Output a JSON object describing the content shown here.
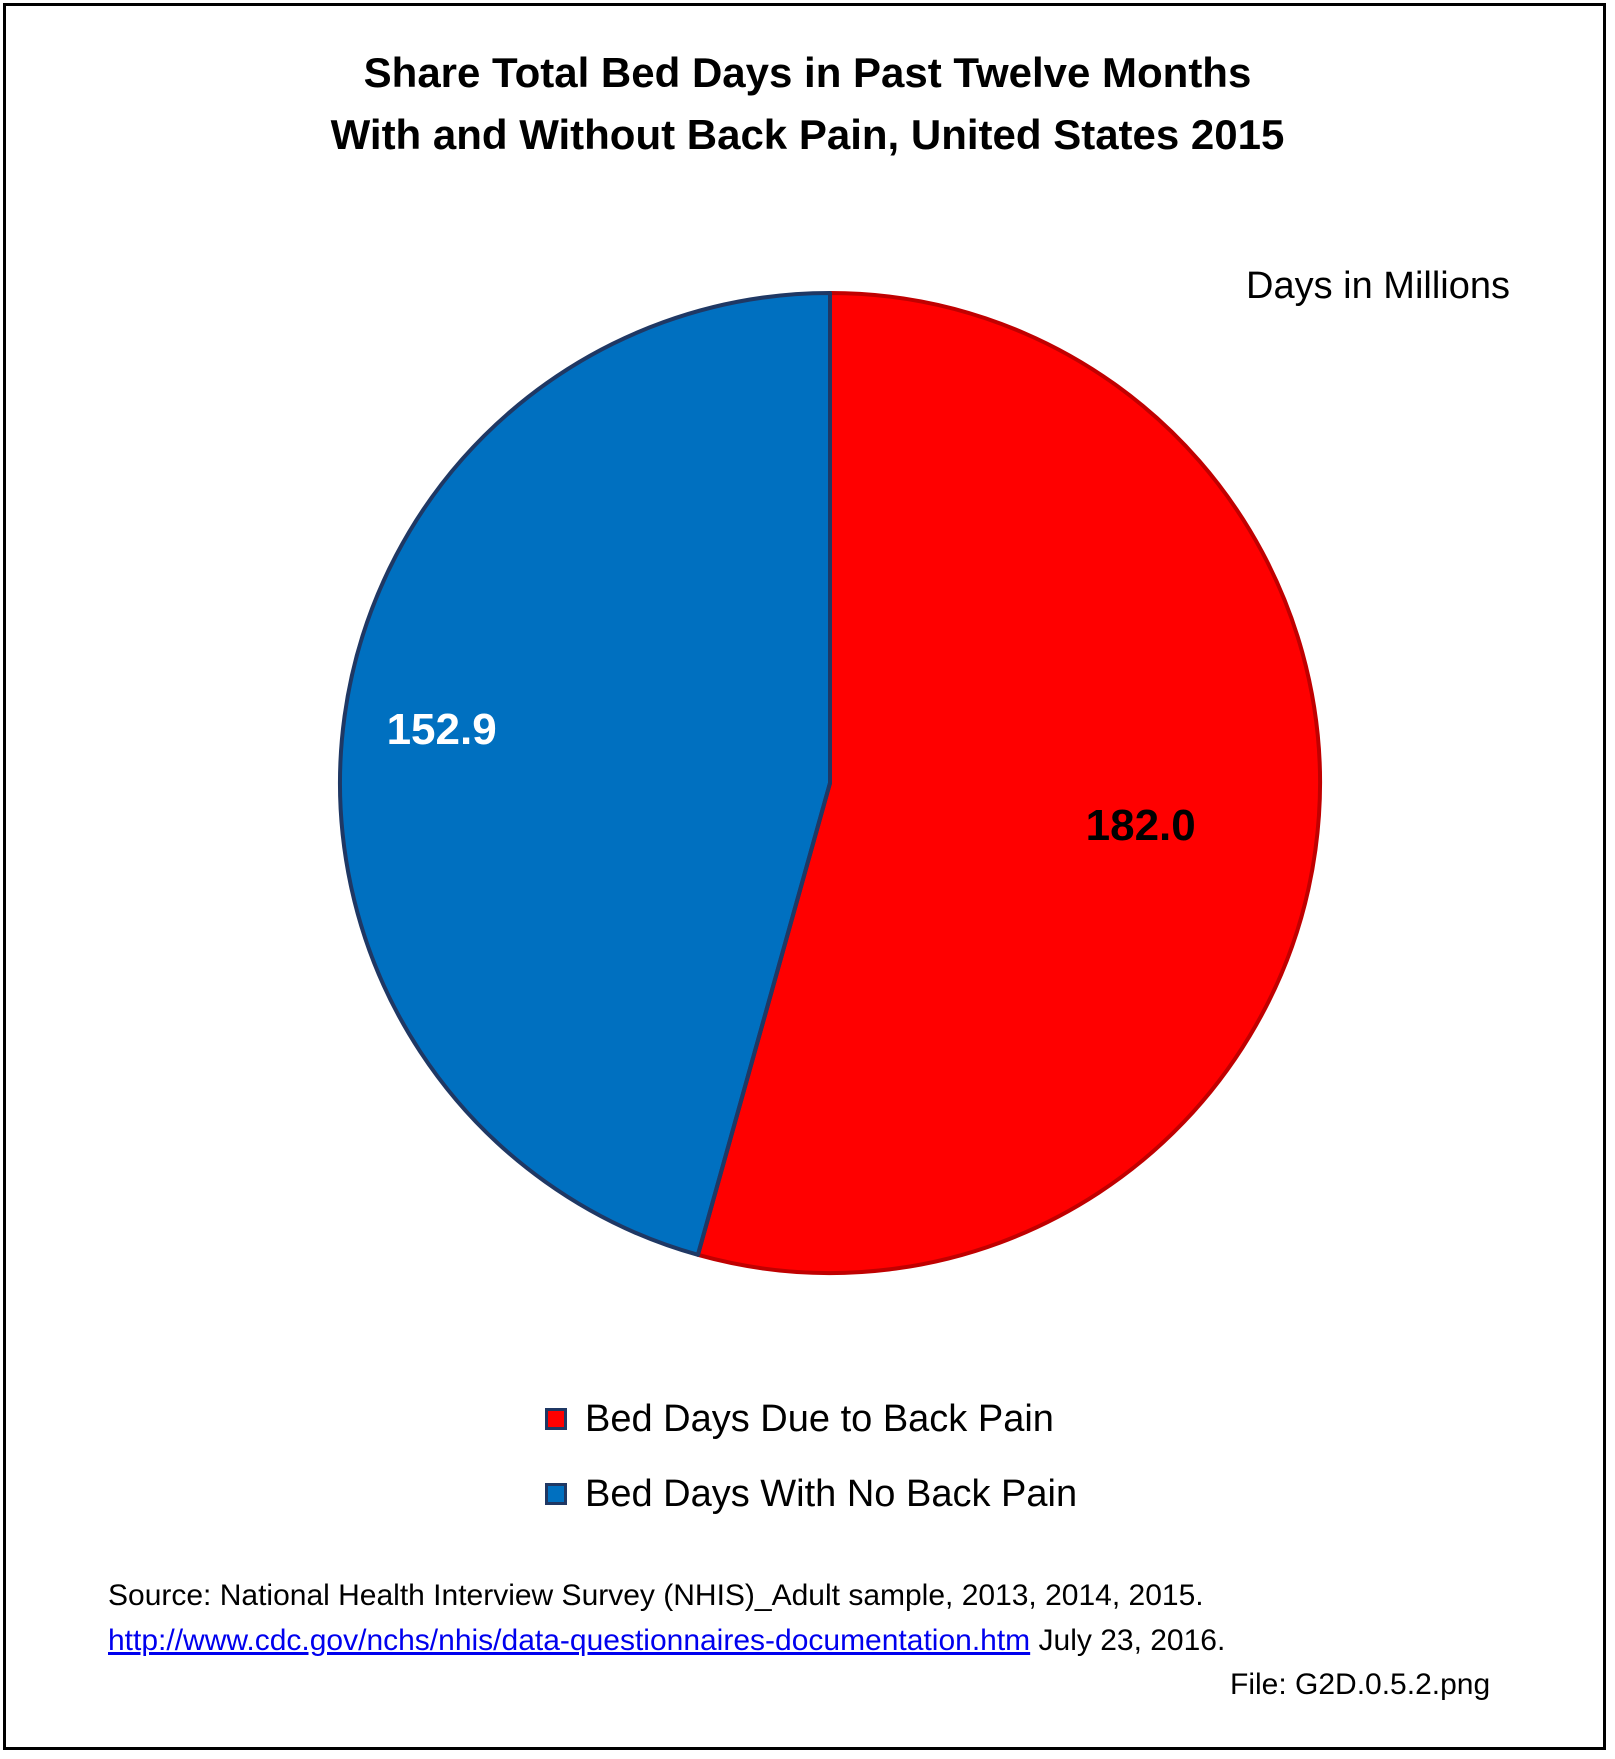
{
  "chart_data": {
    "type": "pie",
    "title": "Share Total Bed Days in Past Twelve Months",
    "subtitle": "With and Without Back Pain, United States 2015",
    "unit_label": "Days in Millions",
    "categories": [
      "Bed Days Due to Back Pain",
      "Bed Days With No Back Pain"
    ],
    "values": [
      182.0,
      152.9
    ],
    "data_labels": [
      "182.0",
      "152.9"
    ],
    "colors": [
      "#ff0000",
      "#0070c0"
    ],
    "edge_colors": [
      "#c00000",
      "#1f3864"
    ],
    "label_colors": [
      "#000000",
      "#ffffff"
    ],
    "legend_position": "bottom",
    "start": "12 o'clock, clockwise"
  },
  "source": {
    "prefix": "Source: National Health Interview Survey (NHIS)_Adult sample, 2013, 2014, 2015.",
    "link_text": "http://www.cdc.gov/nchs/nhis/data-questionnaires-documentation.htm",
    "suffix": "July 23, 2016."
  },
  "file_note": "File: G2D.0.5.2.png"
}
